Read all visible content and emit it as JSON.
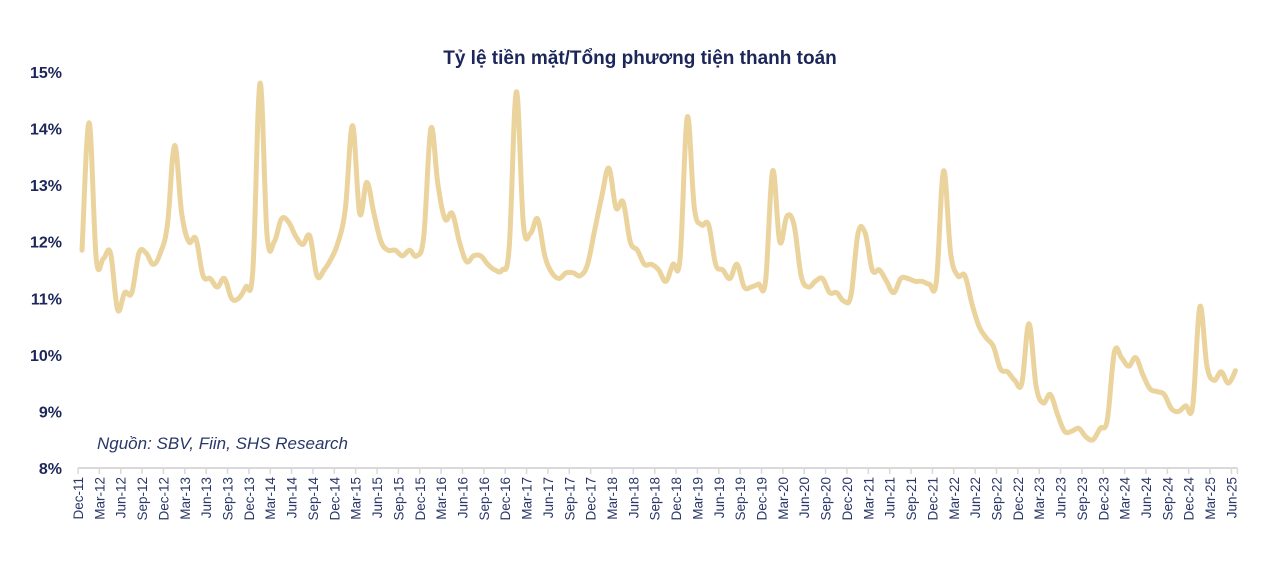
{
  "chart_data": {
    "type": "line",
    "title": "Tỷ lệ tiền mặt/Tổng phương tiện thanh toán",
    "source": "Nguồn: SBV, Fiin, SHS Research",
    "xlabel": "",
    "ylabel": "",
    "ylim": [
      8,
      15
    ],
    "y_ticks": [
      8,
      9,
      10,
      11,
      12,
      13,
      14,
      15
    ],
    "y_tick_labels": [
      "8%",
      "9%",
      "10%",
      "11%",
      "12%",
      "13%",
      "14%",
      "15%"
    ],
    "grid": false,
    "legend": "none",
    "line_color": "#ebd39d",
    "text_color": "#1c2659",
    "start_month": "Dec-11",
    "x_tick_labels": [
      "Dec-11",
      "Mar-12",
      "Jun-12",
      "Sep-12",
      "Dec-12",
      "Mar-13",
      "Jun-13",
      "Sep-13",
      "Dec-13",
      "Mar-14",
      "Jun-14",
      "Sep-14",
      "Dec-14",
      "Mar-15",
      "Jun-15",
      "Sep-15",
      "Dec-15",
      "Mar-16",
      "Jun-16",
      "Sep-16",
      "Dec-16",
      "Mar-17",
      "Jun-17",
      "Sep-17",
      "Dec-17",
      "Mar-18",
      "Jun-18",
      "Sep-18",
      "Dec-18",
      "Mar-19",
      "Jun-19",
      "Sep-19",
      "Dec-19",
      "Mar-20",
      "Jun-20",
      "Sep-20",
      "Dec-20",
      "Mar-21",
      "Jun-21",
      "Sep-21",
      "Dec-21",
      "Mar-22",
      "Jun-22",
      "Sep-22",
      "Dec-22",
      "Mar-23",
      "Jun-23",
      "Sep-23",
      "Dec-23",
      "Mar-24",
      "Jun-24",
      "Sep-24",
      "Dec-24",
      "Mar-25",
      "Jun-25"
    ],
    "x_tick_every_months": 3,
    "series": [
      {
        "name": "Tỷ lệ tiền mặt/Tổng phương tiện thanh toán",
        "values": [
          11.85,
          14.1,
          11.7,
          11.7,
          11.8,
          10.8,
          11.1,
          11.1,
          11.8,
          11.8,
          11.6,
          11.8,
          12.3,
          13.7,
          12.5,
          12.0,
          12.05,
          11.4,
          11.35,
          11.2,
          11.35,
          11.0,
          11.0,
          11.2,
          11.5,
          14.8,
          12.1,
          12.0,
          12.4,
          12.35,
          12.1,
          11.95,
          12.1,
          11.4,
          11.5,
          11.7,
          12.0,
          12.6,
          14.05,
          12.5,
          13.05,
          12.5,
          12.0,
          11.85,
          11.85,
          11.75,
          11.85,
          11.75,
          12.1,
          14.0,
          13.0,
          12.4,
          12.5,
          12.0,
          11.65,
          11.75,
          11.75,
          11.6,
          11.5,
          11.5,
          11.9,
          14.65,
          12.3,
          12.15,
          12.4,
          11.75,
          11.45,
          11.35,
          11.45,
          11.45,
          11.4,
          11.6,
          12.2,
          12.8,
          13.3,
          12.6,
          12.7,
          12.0,
          11.85,
          11.6,
          11.6,
          11.5,
          11.3,
          11.6,
          11.7,
          14.2,
          12.6,
          12.3,
          12.3,
          11.6,
          11.5,
          11.35,
          11.6,
          11.2,
          11.2,
          11.25,
          11.3,
          13.25,
          12.0,
          12.45,
          12.3,
          11.4,
          11.2,
          11.3,
          11.35,
          11.1,
          11.1,
          10.95,
          11.05,
          12.15,
          12.15,
          11.5,
          11.5,
          11.3,
          11.1,
          11.35,
          11.35,
          11.3,
          11.3,
          11.25,
          11.3,
          13.25,
          11.8,
          11.4,
          11.4,
          10.9,
          10.5,
          10.3,
          10.15,
          9.75,
          9.7,
          9.55,
          9.5,
          10.55,
          9.45,
          9.15,
          9.3,
          8.95,
          8.65,
          8.65,
          8.7,
          8.55,
          8.5,
          8.7,
          8.85,
          10.05,
          9.95,
          9.8,
          9.95,
          9.65,
          9.4,
          9.35,
          9.3,
          9.05,
          9.0,
          9.1,
          9.1,
          10.85,
          9.8,
          9.55,
          9.7,
          9.5,
          9.72
        ]
      }
    ]
  }
}
